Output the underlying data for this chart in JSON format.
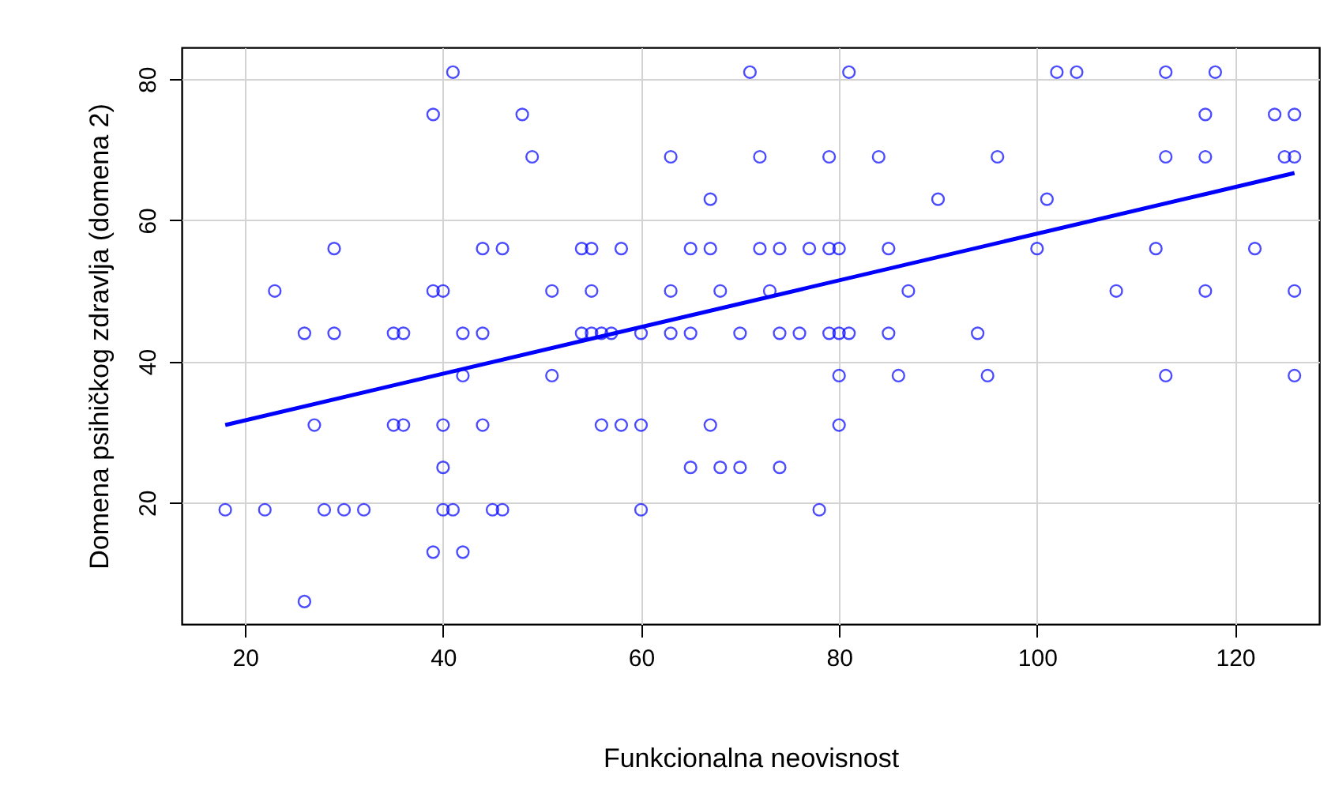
{
  "chart_data": {
    "type": "scatter",
    "xlabel": "Funkcionalna neovisnost",
    "ylabel": "Domena psihičkog zdravlja (domena 2)",
    "xlim": [
      13.6,
      128.5
    ],
    "ylim": [
      2.8,
      84.5
    ],
    "xticks": [
      20,
      40,
      60,
      80,
      100,
      120
    ],
    "yticks": [
      20,
      40,
      60,
      80
    ],
    "grid": true,
    "marker": "circle",
    "series": [
      {
        "color": "#0000ff",
        "x": [
          41,
          71,
          81,
          102,
          104,
          113,
          118,
          39,
          48,
          117,
          124,
          126,
          49,
          63,
          72,
          79,
          84,
          96,
          113,
          117,
          125,
          126,
          67,
          90,
          101,
          29,
          44,
          46,
          54,
          55,
          58,
          65,
          67,
          72,
          74,
          77,
          79,
          80,
          85,
          100,
          112,
          122,
          23,
          39,
          40,
          51,
          55,
          63,
          68,
          73,
          87,
          108,
          117,
          126,
          26,
          29,
          35,
          36,
          42,
          44,
          54,
          55,
          56,
          57,
          60,
          63,
          65,
          70,
          74,
          76,
          79,
          80,
          81,
          85,
          94,
          42,
          51,
          80,
          86,
          95,
          113,
          126,
          27,
          35,
          36,
          40,
          44,
          56,
          58,
          60,
          67,
          80,
          40,
          65,
          68,
          70,
          74,
          18,
          22,
          28,
          30,
          32,
          40,
          41,
          45,
          46,
          60,
          78,
          39,
          42,
          26
        ],
        "values": [
          81,
          81,
          81,
          81,
          81,
          81,
          81,
          75,
          75,
          75,
          75,
          75,
          69,
          69,
          69,
          69,
          69,
          69,
          69,
          69,
          69,
          69,
          63,
          63,
          63,
          56,
          56,
          56,
          56,
          56,
          56,
          56,
          56,
          56,
          56,
          56,
          56,
          56,
          56,
          56,
          56,
          56,
          50,
          50,
          50,
          50,
          50,
          50,
          50,
          50,
          50,
          50,
          50,
          50,
          44,
          44,
          44,
          44,
          44,
          44,
          44,
          44,
          44,
          44,
          44,
          44,
          44,
          44,
          44,
          44,
          44,
          44,
          44,
          44,
          44,
          38,
          38,
          38,
          38,
          38,
          38,
          38,
          31,
          31,
          31,
          31,
          31,
          31,
          31,
          31,
          31,
          31,
          25,
          25,
          25,
          25,
          25,
          19,
          19,
          19,
          19,
          19,
          19,
          19,
          19,
          19,
          19,
          19,
          13,
          13,
          6
        ]
      },
      {
        "type": "line",
        "color": "#0000ff",
        "marker": "none",
        "x": [
          18,
          126
        ],
        "values": [
          31,
          66.7
        ]
      }
    ]
  }
}
